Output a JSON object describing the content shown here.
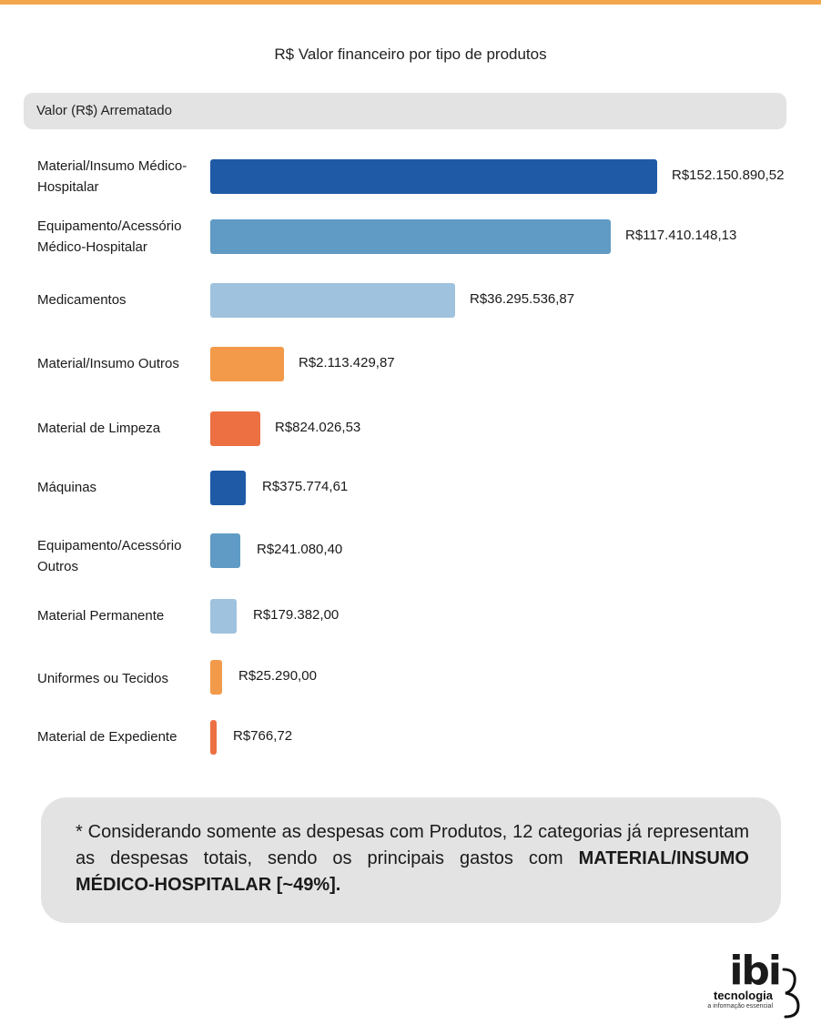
{
  "chart_data": {
    "type": "bar",
    "orientation": "horizontal",
    "title": "R$ Valor financeiro por tipo de produtos",
    "series_header": "Valor (R$) Arrematado",
    "categories": [
      "Material/Insumo Médico-Hospitalar",
      "Equipamento/Acessório Médico-Hospitalar",
      "Medicamentos",
      "Material/Insumo Outros",
      "Material de Limpeza",
      "Máquinas",
      "Equipamento/Acessório Outros",
      "Material Permanente",
      "Uniformes ou Tecidos",
      "Material de Expediente"
    ],
    "values": [
      152150890.52,
      117410148.13,
      36295536.87,
      2113429.87,
      824026.53,
      375774.61,
      241080.4,
      179382.0,
      25290.0,
      766.72
    ],
    "value_labels": [
      "R$152.150.890,52",
      "R$117.410.148,13",
      "R$36.295.536,87",
      "R$2.113.429,87",
      "R$824.026,53",
      "R$375.774,61",
      "R$241.080,40",
      "R$179.382,00",
      "R$25.290,00",
      "R$766,72"
    ],
    "colors": [
      "#1f5aa6",
      "#5f9bc5",
      "#9fc2de",
      "#f39a4a",
      "#ec7042",
      "#1f5aa6",
      "#5f9bc5",
      "#9fc2de",
      "#f39a4a",
      "#ec7042"
    ],
    "scale": "non-linear (displayed lengths not proportional)",
    "grid": false,
    "legend": "none"
  },
  "note": {
    "text": "* Considerando somente as despesas com Produtos, 12 categorias já representam as despesas totais, sendo os principais gastos com ",
    "bold": "MATERIAL/INSUMO MÉDICO-HOSPITALAR [~49%]."
  },
  "logo": {
    "mark": "ibi",
    "word": "tecnologia",
    "tagline": "a informação essencial"
  },
  "colors": {
    "top_stripe": "#f4a64d",
    "panel": "#e3e3e4"
  }
}
